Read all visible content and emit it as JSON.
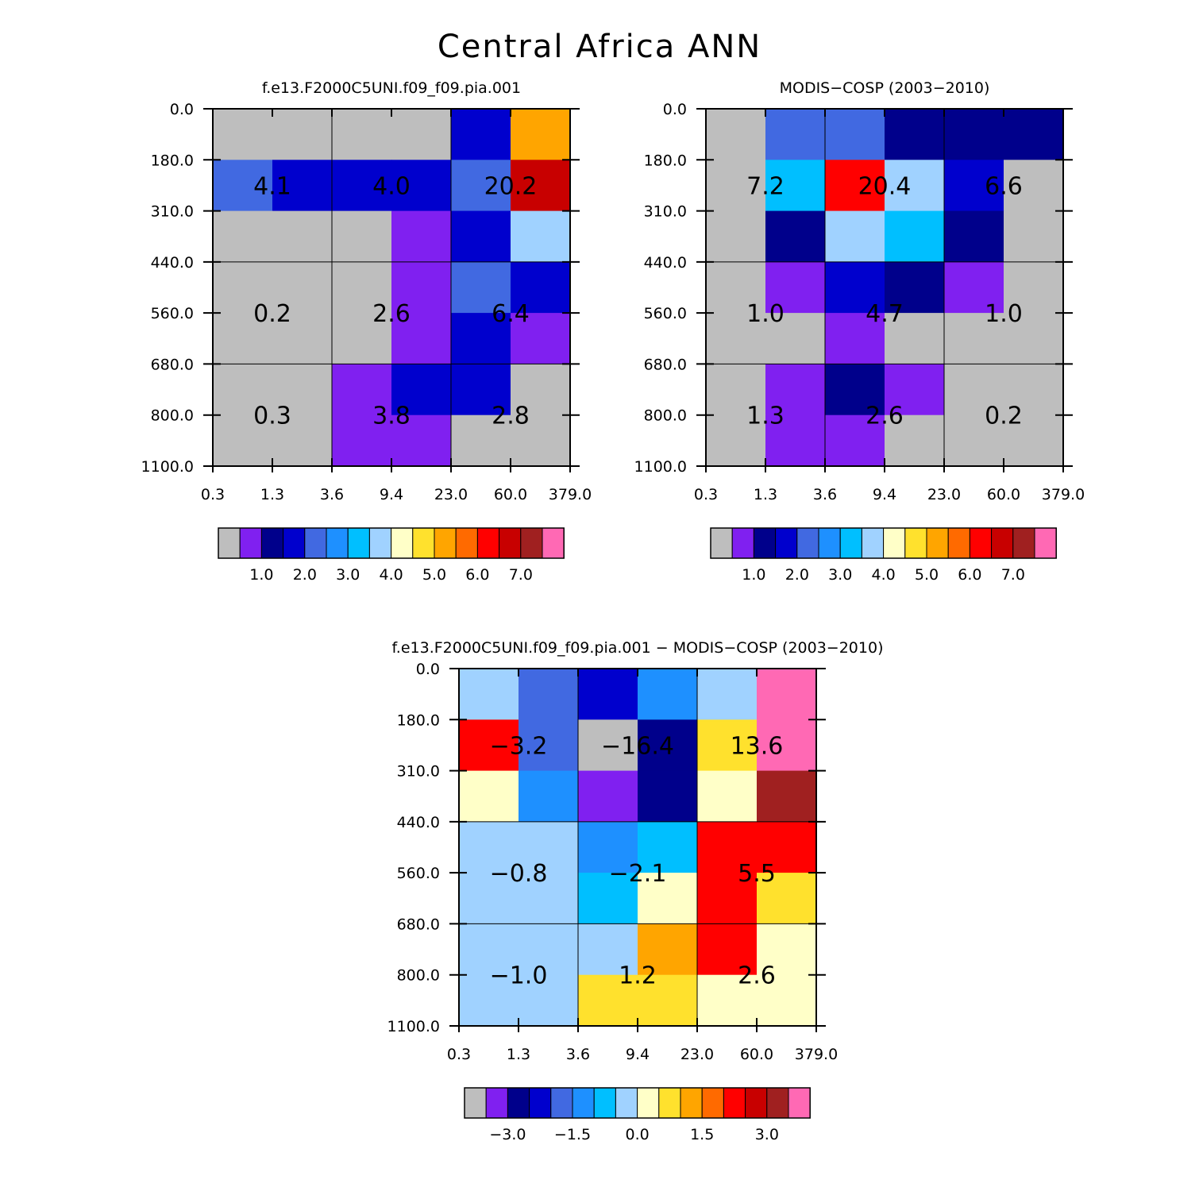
{
  "figure": {
    "title": "Central Africa ANN"
  },
  "chart_data": [
    {
      "type": "heatmap",
      "title": "f.e13.F2000C5UNI.f09_f09.pia.001",
      "x_tick_labels": [
        "0.3",
        "1.3",
        "3.6",
        "9.4",
        "23.0",
        "60.0",
        "379.0"
      ],
      "y_tick_labels": [
        "0.0",
        "180.0",
        "310.0",
        "440.0",
        "560.0",
        "680.0",
        "800.0",
        "1100.0"
      ],
      "cells": [
        [
          0,
          0,
          0,
          0,
          3,
          10
        ],
        [
          4,
          3,
          3,
          3,
          4,
          13
        ],
        [
          0,
          0,
          0,
          1,
          3,
          7
        ],
        [
          0,
          0,
          0,
          1,
          4,
          3
        ],
        [
          0,
          0,
          0,
          1,
          3,
          1
        ],
        [
          0,
          0,
          1,
          3,
          3,
          0
        ],
        [
          0,
          0,
          1,
          1,
          0,
          0
        ]
      ],
      "group_labels": [
        {
          "row": 0,
          "col": 0,
          "text": "4.1"
        },
        {
          "row": 0,
          "col": 1,
          "text": "4.0"
        },
        {
          "row": 0,
          "col": 2,
          "text": "20.2"
        },
        {
          "row": 1,
          "col": 0,
          "text": "0.2"
        },
        {
          "row": 1,
          "col": 1,
          "text": "2.6"
        },
        {
          "row": 1,
          "col": 2,
          "text": "6.4"
        },
        {
          "row": 2,
          "col": 0,
          "text": "0.3"
        },
        {
          "row": 2,
          "col": 1,
          "text": "3.8"
        },
        {
          "row": 2,
          "col": 2,
          "text": "2.8"
        }
      ],
      "colorbar_labels": [
        "1.0",
        "2.0",
        "3.0",
        "4.0",
        "5.0",
        "6.0",
        "7.0"
      ]
    },
    {
      "type": "heatmap",
      "title": "MODIS-COSP (2003-2010)",
      "x_tick_labels": [
        "0.3",
        "1.3",
        "3.6",
        "9.4",
        "23.0",
        "60.0",
        "379.0"
      ],
      "y_tick_labels": [
        "0.0",
        "180.0",
        "310.0",
        "440.0",
        "560.0",
        "680.0",
        "800.0",
        "1100.0"
      ],
      "cells": [
        [
          0,
          4,
          4,
          2,
          2,
          2
        ],
        [
          0,
          6,
          12,
          7,
          3,
          0
        ],
        [
          0,
          2,
          7,
          6,
          2,
          0
        ],
        [
          0,
          1,
          3,
          2,
          1,
          0
        ],
        [
          0,
          0,
          1,
          0,
          0,
          0
        ],
        [
          0,
          1,
          2,
          1,
          0,
          0
        ],
        [
          0,
          1,
          1,
          0,
          0,
          0
        ]
      ],
      "group_labels": [
        {
          "row": 0,
          "col": 0,
          "text": "7.2"
        },
        {
          "row": 0,
          "col": 1,
          "text": "20.4"
        },
        {
          "row": 0,
          "col": 2,
          "text": "6.6"
        },
        {
          "row": 1,
          "col": 0,
          "text": "1.0"
        },
        {
          "row": 1,
          "col": 1,
          "text": "4.7"
        },
        {
          "row": 1,
          "col": 2,
          "text": "1.0"
        },
        {
          "row": 2,
          "col": 0,
          "text": "1.3"
        },
        {
          "row": 2,
          "col": 1,
          "text": "2.6"
        },
        {
          "row": 2,
          "col": 2,
          "text": "0.2"
        }
      ],
      "colorbar_labels": [
        "1.0",
        "2.0",
        "3.0",
        "4.0",
        "5.0",
        "6.0",
        "7.0"
      ]
    },
    {
      "type": "heatmap",
      "title": "f.e13.F2000C5UNI.f09_f09.pia.001 - MODIS-COSP (2003-2010)",
      "x_tick_labels": [
        "0.3",
        "1.3",
        "3.6",
        "9.4",
        "23.0",
        "60.0",
        "379.0"
      ],
      "y_tick_labels": [
        "0.0",
        "180.0",
        "310.0",
        "440.0",
        "560.0",
        "680.0",
        "800.0",
        "1100.0"
      ],
      "cells": [
        [
          7,
          4,
          3,
          5,
          7,
          15
        ],
        [
          12,
          4,
          0,
          2,
          9,
          15
        ],
        [
          8,
          5,
          1,
          2,
          8,
          14
        ],
        [
          7,
          7,
          5,
          6,
          12,
          12
        ],
        [
          7,
          7,
          6,
          8,
          12,
          9
        ],
        [
          7,
          7,
          7,
          10,
          12,
          8
        ],
        [
          7,
          7,
          9,
          9,
          8,
          8
        ]
      ],
      "group_labels": [
        {
          "row": 0,
          "col": 0,
          "text": "-3.2"
        },
        {
          "row": 0,
          "col": 1,
          "text": "-16.4"
        },
        {
          "row": 0,
          "col": 2,
          "text": "13.6"
        },
        {
          "row": 1,
          "col": 0,
          "text": "-0.8"
        },
        {
          "row": 1,
          "col": 1,
          "text": "-2.1"
        },
        {
          "row": 1,
          "col": 2,
          "text": "5.5"
        },
        {
          "row": 2,
          "col": 0,
          "text": "-1.0"
        },
        {
          "row": 2,
          "col": 1,
          "text": "1.2"
        },
        {
          "row": 2,
          "col": 2,
          "text": "2.6"
        }
      ],
      "colorbar_labels": [
        "-3.0",
        "-1.5",
        "0.0",
        "1.5",
        "3.0"
      ]
    }
  ],
  "palette": [
    "#bebebe",
    "#8020f0",
    "#00008b",
    "#0000cd",
    "#4169e1",
    "#1e90ff",
    "#00bfff",
    "#a0d2ff",
    "#ffffc8",
    "#ffe12d",
    "#ffa500",
    "#ff6a00",
    "#ff0000",
    "#c80000",
    "#a02020",
    "#ff69b4"
  ]
}
